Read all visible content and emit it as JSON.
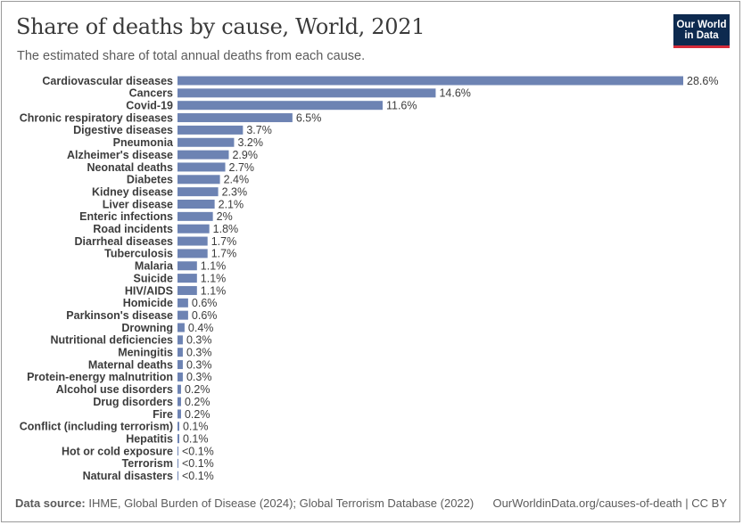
{
  "header": {
    "title": "Share of deaths by cause, World, 2021",
    "subtitle": "The estimated share of total annual deaths from each cause."
  },
  "logo": {
    "line1": "Our World",
    "line2": "in Data",
    "bg_color": "#0d2a4f",
    "accent_color": "#d52b3a"
  },
  "footer": {
    "source_label": "Data source:",
    "source_text": "IHME, Global Burden of Disease (2024); Global Terrorism Database (2022)",
    "credit": "OurWorldinData.org/causes-of-death | CC BY"
  },
  "chart_data": {
    "type": "bar",
    "orientation": "horizontal",
    "bar_color": "#6d83b3",
    "unit": "%",
    "categories": [
      "Cardiovascular diseases",
      "Cancers",
      "Covid-19",
      "Chronic respiratory diseases",
      "Digestive diseases",
      "Pneumonia",
      "Alzheimer's disease",
      "Neonatal deaths",
      "Diabetes",
      "Kidney disease",
      "Liver disease",
      "Enteric infections",
      "Road incidents",
      "Diarrheal diseases",
      "Tuberculosis",
      "Malaria",
      "Suicide",
      "HIV/AIDS",
      "Homicide",
      "Parkinson's disease",
      "Drowning",
      "Nutritional deficiencies",
      "Meningitis",
      "Maternal deaths",
      "Protein-energy malnutrition",
      "Alcohol use disorders",
      "Drug disorders",
      "Fire",
      "Conflict (including terrorism)",
      "Hepatitis",
      "Hot or cold exposure",
      "Terrorism",
      "Natural disasters"
    ],
    "values": [
      28.6,
      14.6,
      11.6,
      6.5,
      3.7,
      3.2,
      2.9,
      2.7,
      2.4,
      2.3,
      2.1,
      2.0,
      1.8,
      1.7,
      1.7,
      1.1,
      1.1,
      1.1,
      0.6,
      0.6,
      0.4,
      0.3,
      0.3,
      0.3,
      0.3,
      0.2,
      0.2,
      0.2,
      0.1,
      0.1,
      0.05,
      0.03,
      0.03
    ],
    "value_labels": [
      "28.6%",
      "14.6%",
      "11.6%",
      "6.5%",
      "3.7%",
      "3.2%",
      "2.9%",
      "2.7%",
      "2.4%",
      "2.3%",
      "2.1%",
      "2%",
      "1.8%",
      "1.7%",
      "1.7%",
      "1.1%",
      "1.1%",
      "1.1%",
      "0.6%",
      "0.6%",
      "0.4%",
      "0.3%",
      "0.3%",
      "0.3%",
      "0.3%",
      "0.2%",
      "0.2%",
      "0.2%",
      "0.1%",
      "0.1%",
      "<0.1%",
      "<0.1%",
      "<0.1%"
    ],
    "xlim": [
      0,
      28.6
    ],
    "grid": false,
    "legend": false
  }
}
